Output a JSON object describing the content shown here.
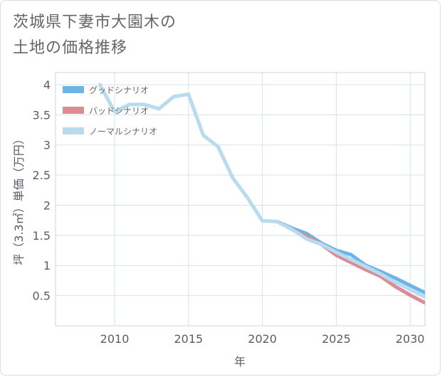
{
  "title": {
    "line1": "茨城県下妻市大園木の",
    "line2": "土地の価格推移"
  },
  "chart_data": {
    "type": "line",
    "xlabel": "年",
    "ylabel": "坪（3.3㎡）単価（万円）",
    "xlim": [
      2006,
      2031
    ],
    "ylim": [
      0,
      4.2
    ],
    "xticks": [
      2010,
      2015,
      2020,
      2025,
      2030
    ],
    "xtick_labels": [
      "2010",
      "2015",
      "2020",
      "2025",
      "2030"
    ],
    "yticks": [
      0.5,
      1,
      1.5,
      2,
      2.5,
      3,
      3.5,
      4
    ],
    "ytick_labels": [
      "0.5",
      "1",
      "1.5",
      "2",
      "2.5",
      "3",
      "3.5",
      "4"
    ],
    "grid": true,
    "legend_position": "top-left",
    "series": [
      {
        "name": "グッドシナリオ",
        "color": "#6cb4e8",
        "x": [
          2021,
          2022,
          2023,
          2024,
          2025,
          2026,
          2027,
          2028,
          2029,
          2030,
          2031
        ],
        "y": [
          1.73,
          1.62,
          1.53,
          1.37,
          1.25,
          1.18,
          1.0,
          0.9,
          0.79,
          0.67,
          0.55
        ]
      },
      {
        "name": "バッドシナリオ",
        "color": "#dd8a93",
        "x": [
          2021,
          2022,
          2023,
          2024,
          2025,
          2026,
          2027,
          2028,
          2029,
          2030,
          2031
        ],
        "y": [
          1.73,
          1.6,
          1.48,
          1.35,
          1.17,
          1.05,
          0.93,
          0.82,
          0.65,
          0.51,
          0.38
        ]
      },
      {
        "name": "ノーマルシナリオ",
        "color": "#b8dbee",
        "x": [
          2009,
          2010,
          2011,
          2012,
          2013,
          2014,
          2015,
          2016,
          2017,
          2018,
          2019,
          2020,
          2021,
          2022,
          2023,
          2024,
          2025,
          2026,
          2027,
          2028,
          2029,
          2030,
          2031
        ],
        "y": [
          4.0,
          3.55,
          3.67,
          3.67,
          3.6,
          3.8,
          3.84,
          3.16,
          2.97,
          2.45,
          2.12,
          1.74,
          1.73,
          1.6,
          1.44,
          1.35,
          1.22,
          1.1,
          0.98,
          0.86,
          0.72,
          0.6,
          0.48
        ]
      }
    ]
  }
}
